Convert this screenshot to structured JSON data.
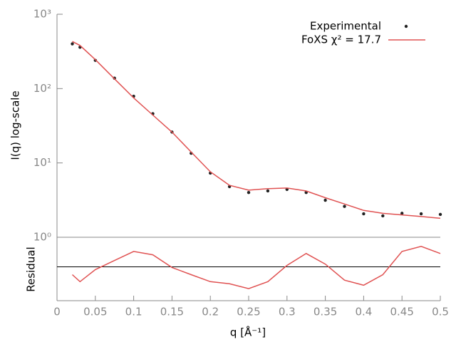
{
  "chart_data": [
    {
      "type": "line",
      "ylabel": "I(q) log-scale",
      "log_y": true,
      "ylim": [
        1,
        1000
      ],
      "yticks": [
        {
          "value": 1,
          "label": "10⁰"
        },
        {
          "value": 10,
          "label": "10¹"
        },
        {
          "value": 100,
          "label": "10²"
        },
        {
          "value": 1000,
          "label": "10³"
        }
      ],
      "xlim": [
        0,
        0.5
      ],
      "legend": "top right",
      "x": [
        0.02,
        0.03,
        0.05,
        0.075,
        0.1,
        0.125,
        0.15,
        0.175,
        0.2,
        0.225,
        0.25,
        0.275,
        0.3,
        0.325,
        0.35,
        0.375,
        0.4,
        0.425,
        0.45,
        0.475,
        0.5
      ],
      "series": [
        {
          "name": "Experimental",
          "type": "scatter",
          "color": "#222222",
          "values": [
            400,
            360,
            240,
            138,
            79,
            46,
            26,
            13.5,
            7.3,
            4.8,
            4.0,
            4.2,
            4.4,
            4.0,
            3.15,
            2.6,
            2.07,
            1.94,
            2.1,
            2.07,
            2.03
          ]
        },
        {
          "name": "FoXS χ² = 17.7",
          "type": "line",
          "color": "#e05252",
          "values": [
            430,
            380,
            245,
            135,
            75,
            44,
            26,
            14,
            7.6,
            5.0,
            4.3,
            4.5,
            4.6,
            4.2,
            3.4,
            2.8,
            2.3,
            2.1,
            2.0,
            1.9,
            1.8
          ]
        }
      ]
    },
    {
      "type": "line",
      "ylabel": "Residual",
      "xlabel": "q [Å⁻¹]",
      "ylim": [
        -1.6,
        1.4
      ],
      "xlim": [
        0,
        0.5
      ],
      "xticks": [
        0,
        0.05,
        0.1,
        0.15,
        0.2,
        0.25,
        0.3,
        0.35,
        0.4,
        0.45,
        0.5
      ],
      "x": [
        0.02,
        0.03,
        0.05,
        0.075,
        0.1,
        0.125,
        0.15,
        0.175,
        0.2,
        0.225,
        0.25,
        0.275,
        0.3,
        0.325,
        0.35,
        0.375,
        0.4,
        0.425,
        0.45,
        0.475,
        0.5
      ],
      "series": [
        {
          "type": "line",
          "color": "#e05252",
          "values": [
            -0.37,
            -0.7,
            -0.13,
            0.3,
            0.73,
            0.57,
            -0.03,
            -0.37,
            -0.7,
            -0.8,
            -1.03,
            -0.7,
            0.07,
            0.63,
            0.13,
            -0.63,
            -0.87,
            -0.37,
            0.73,
            0.97,
            0.63
          ]
        }
      ]
    }
  ]
}
